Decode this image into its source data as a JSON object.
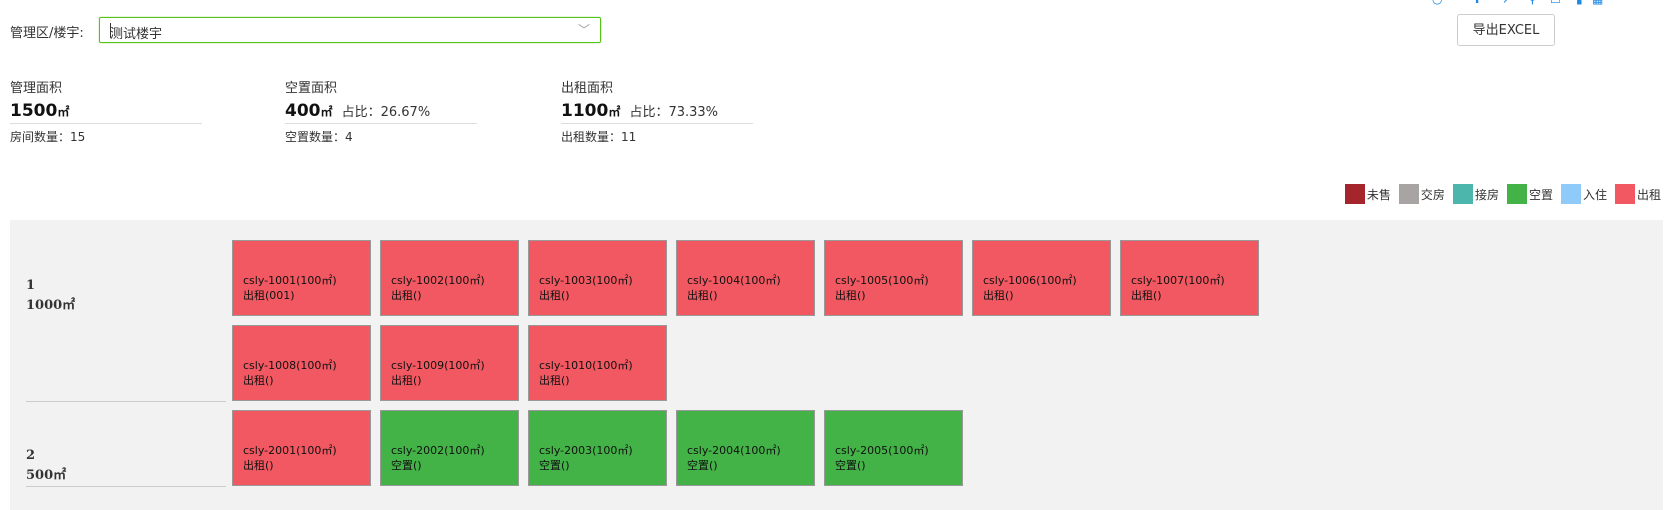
{
  "filter": {
    "label": "管理区/楼宇:",
    "value": "测试楼宇"
  },
  "export_label": "导出EXCEL",
  "stats": {
    "manage": {
      "title": "管理面积",
      "area": "1500",
      "unit": "㎡",
      "sub": "房间数量：15"
    },
    "vacant": {
      "title": "空置面积",
      "area": "400",
      "unit": "㎡",
      "ratio": "占比：26.67%",
      "sub": "空置数量：4"
    },
    "rent": {
      "title": "出租面积",
      "area": "1100",
      "unit": "㎡",
      "ratio": "占比：73.33%",
      "sub": "出租数量：11"
    }
  },
  "legend": [
    {
      "label": "未售",
      "color": "#a4262c"
    },
    {
      "label": "交房",
      "color": "#a8a4a4"
    },
    {
      "label": "接房",
      "color": "#4db6ac"
    },
    {
      "label": "空置",
      "color": "#43b347"
    },
    {
      "label": "入住",
      "color": "#90caf9"
    },
    {
      "label": "出租",
      "color": "#f25861"
    }
  ],
  "floors": [
    {
      "num": "1",
      "area": "1000㎡",
      "rooms": [
        {
          "name": "csly-1001(100㎡)",
          "status": "出租(001)",
          "color": "#f25861"
        },
        {
          "name": "csly-1002(100㎡)",
          "status": "出租()",
          "color": "#f25861"
        },
        {
          "name": "csly-1003(100㎡)",
          "status": "出租()",
          "color": "#f25861"
        },
        {
          "name": "csly-1004(100㎡)",
          "status": "出租()",
          "color": "#f25861"
        },
        {
          "name": "csly-1005(100㎡)",
          "status": "出租()",
          "color": "#f25861"
        },
        {
          "name": "csly-1006(100㎡)",
          "status": "出租()",
          "color": "#f25861"
        },
        {
          "name": "csly-1007(100㎡)",
          "status": "出租()",
          "color": "#f25861"
        },
        {
          "name": "csly-1008(100㎡)",
          "status": "出租()",
          "color": "#f25861"
        },
        {
          "name": "csly-1009(100㎡)",
          "status": "出租()",
          "color": "#f25861"
        },
        {
          "name": "csly-1010(100㎡)",
          "status": "出租()",
          "color": "#f25861"
        }
      ]
    },
    {
      "num": "2",
      "area": "500㎡",
      "rooms": [
        {
          "name": "csly-2001(100㎡)",
          "status": "出租()",
          "color": "#f25861"
        },
        {
          "name": "csly-2002(100㎡)",
          "status": "空置()",
          "color": "#43b347"
        },
        {
          "name": "csly-2003(100㎡)",
          "status": "空置()",
          "color": "#43b347"
        },
        {
          "name": "csly-2004(100㎡)",
          "status": "空置()",
          "color": "#43b347"
        },
        {
          "name": "csly-2005(100㎡)",
          "status": "空置()",
          "color": "#43b347"
        }
      ]
    }
  ]
}
